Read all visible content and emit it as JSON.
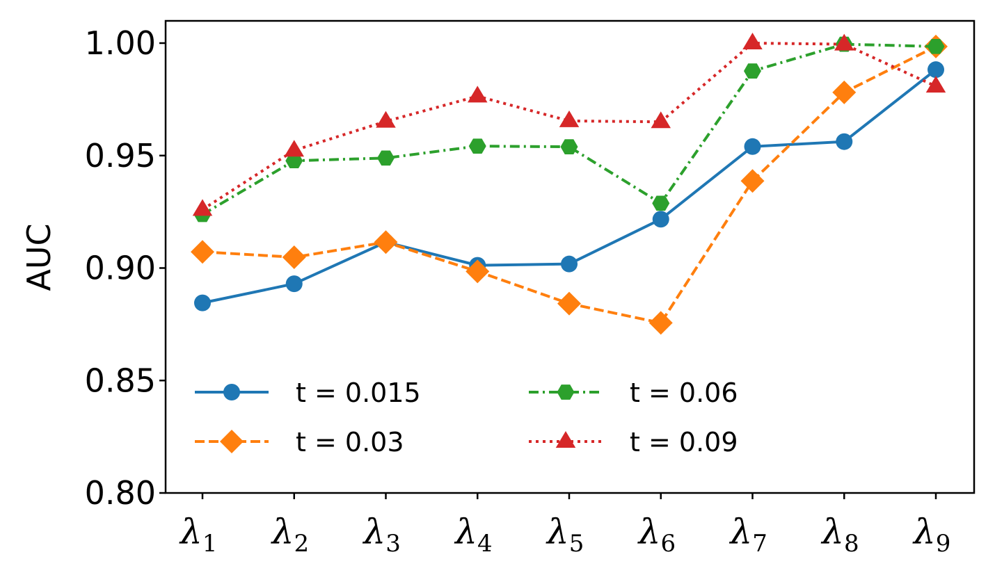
{
  "chart_data": {
    "type": "line",
    "title": "",
    "xlabel": "",
    "ylabel": "AUC",
    "ylim": [
      0.8,
      1.01
    ],
    "yticks": [
      "0.80",
      "0.85",
      "0.90",
      "0.95",
      "1.00"
    ],
    "categories": [
      {
        "base": "λ",
        "sub": "1"
      },
      {
        "base": "λ",
        "sub": "2"
      },
      {
        "base": "λ",
        "sub": "3"
      },
      {
        "base": "λ",
        "sub": "4"
      },
      {
        "base": "λ",
        "sub": "5"
      },
      {
        "base": "λ",
        "sub": "6"
      },
      {
        "base": "λ",
        "sub": "7"
      },
      {
        "base": "λ",
        "sub": "8"
      },
      {
        "base": "λ",
        "sub": "9"
      }
    ],
    "grid": false,
    "legend_position": "lower-left",
    "series": [
      {
        "name": "t = 0.015",
        "color": "#1f77b4",
        "marker": "circle",
        "linestyle": "solid",
        "values": [
          0.8845,
          0.893,
          0.9115,
          0.9012,
          0.9018,
          0.9217,
          0.954,
          0.9562,
          0.9882
        ]
      },
      {
        "name": "t = 0.03",
        "color": "#ff7f0e",
        "marker": "diamond",
        "linestyle": "dashed",
        "values": [
          0.9072,
          0.9048,
          0.9115,
          0.8985,
          0.8842,
          0.8756,
          0.9387,
          0.9781,
          0.9985
        ]
      },
      {
        "name": "t = 0.06",
        "color": "#2ca02c",
        "marker": "hexagon",
        "linestyle": "dashdot",
        "values": [
          0.9238,
          0.9477,
          0.9489,
          0.9542,
          0.9539,
          0.9288,
          0.9876,
          0.9995,
          0.9985
        ]
      },
      {
        "name": "t = 0.09",
        "color": "#d62728",
        "marker": "triangle",
        "linestyle": "dotted",
        "values": [
          0.926,
          0.9523,
          0.9652,
          0.9764,
          0.9654,
          0.965,
          1.0,
          0.9995,
          0.9808
        ]
      }
    ]
  }
}
